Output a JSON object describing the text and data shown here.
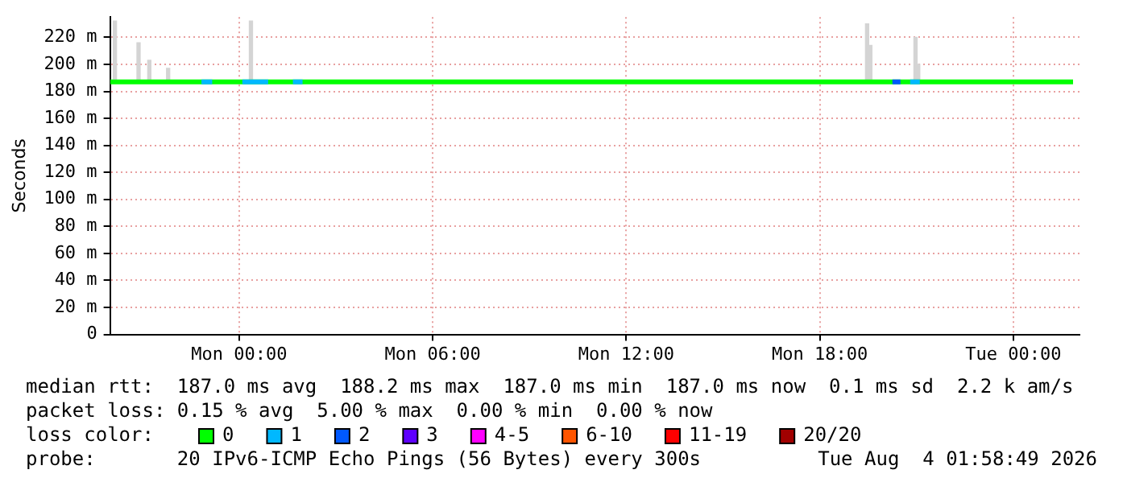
{
  "chart_data": {
    "type": "line",
    "ylabel": "Seconds",
    "legend_title": "loss color:",
    "legend": "bottom",
    "grid": true,
    "marker": "none",
    "xlim": [
      "2026-08-02T20:00",
      "2026-08-04T02:03"
    ],
    "xticks": [
      {
        "value": "2026-08-03T00:00",
        "label": "Mon 00:00"
      },
      {
        "value": "2026-08-03T06:00",
        "label": "Mon 06:00"
      },
      {
        "value": "2026-08-03T12:00",
        "label": "Mon 12:00"
      },
      {
        "value": "2026-08-03T18:00",
        "label": "Mon 18:00"
      },
      {
        "value": "2026-08-04T00:00",
        "label": "Tue 00:00"
      }
    ],
    "ylim": [
      0,
      235
    ],
    "yticks": [
      0,
      {
        "value": 20,
        "label": "20 m"
      },
      {
        "value": 40,
        "label": "40 m"
      },
      {
        "value": 60,
        "label": "60 m"
      },
      {
        "value": 80,
        "label": "80 m"
      },
      {
        "value": 100,
        "label": "100 m"
      },
      {
        "value": 120,
        "label": "120 m"
      },
      {
        "value": 140,
        "label": "140 m"
      },
      {
        "value": 160,
        "label": "160 m"
      },
      {
        "value": 180,
        "label": "180 m"
      },
      {
        "value": 200,
        "label": "200 m"
      },
      {
        "value": 220,
        "label": "220 m"
      }
    ],
    "series": [
      {
        "type": "bar",
        "color": "#d4d4d4",
        "x": [
          "2026-08-02T20:09",
          "2026-08-02T20:53",
          "2026-08-02T21:13",
          "2026-08-02T21:48",
          "2026-08-03T00:22",
          "2026-08-03T19:28",
          "2026-08-03T19:34",
          "2026-08-03T20:58",
          "2026-08-03T21:03"
        ],
        "base": [
          187,
          187,
          187,
          187,
          187,
          187,
          187,
          187,
          187
        ],
        "values": [
          45,
          29,
          16,
          10,
          45,
          43,
          27,
          33,
          13
        ]
      },
      {
        "name": "0",
        "color": "#00ff00",
        "x": [
          "2026-08-02T20:00",
          "2026-08-04T01:51"
        ],
        "values": [
          187,
          187
        ]
      },
      {
        "name": "1",
        "color": "#00b8ff",
        "x": [
          "2026-08-02T22:50",
          "2026-08-02T23:10",
          "2026-08-02T23:12",
          "2026-08-03T00:06",
          "2026-08-03T00:54",
          "2026-08-03T00:57",
          "2026-08-03T01:40",
          "2026-08-03T01:58",
          "2026-08-03T02:00",
          "2026-08-03T20:48",
          "2026-08-03T21:06"
        ],
        "values": [
          187,
          187,
          null,
          187,
          187,
          null,
          187,
          187,
          null,
          187,
          187
        ]
      },
      {
        "name": "2",
        "color": "#0059ff",
        "x": [
          "2026-08-03T20:15",
          "2026-08-03T20:30"
        ],
        "values": [
          187,
          187
        ]
      },
      {
        "name": "3",
        "color": "#5e00ff"
      },
      {
        "name": "4-5",
        "color": "#ff00ff"
      },
      {
        "name": "6-10",
        "color": "#ff5500"
      },
      {
        "name": "11-19",
        "color": "#ff0000"
      },
      {
        "name": "20/20",
        "color": "#a10000"
      }
    ],
    "annotations": [
      "median rtt:  187.0 ms avg  188.2 ms max  187.0 ms min  187.0 ms now  0.1 ms sd  2.2 k am/s",
      "packet loss: 0.15 % avg  5.00 % max  0.00 % min  0.00 % now",
      "probe:       20 IPv6-ICMP Echo Pings (56 Bytes) every 300s",
      "Tue Aug  4 01:58:49 2026"
    ]
  }
}
